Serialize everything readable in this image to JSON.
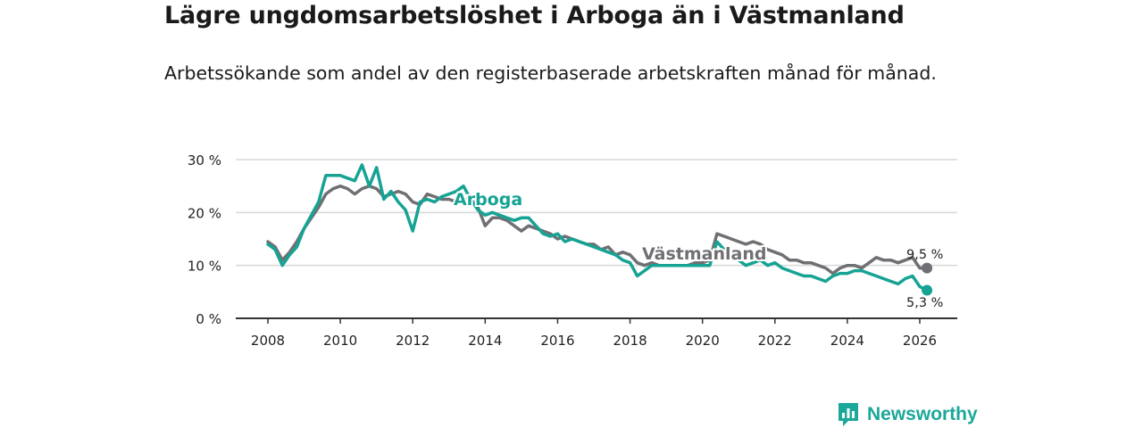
{
  "header": {
    "title": "Lägre ungdomsarbetslöshet i Arboga än i Västmanland",
    "subtitle": "Arbetssökande som andel av den registerbaserade arbetskraften månad för månad."
  },
  "logo": {
    "text": "Newsworthy"
  },
  "colors": {
    "arboga": "#16a394",
    "vastmanland": "#707074",
    "grid": "#d7d7d7",
    "axis": "#333333",
    "brand": "#1ba89a"
  },
  "chart_data": {
    "type": "line",
    "title": "Lägre ungdomsarbetslöshet i Arboga än i Västmanland",
    "xlabel": "",
    "ylabel": "",
    "xlim": [
      2007.1,
      2027.0
    ],
    "ylim": [
      0,
      30
    ],
    "x_ticks": [
      2008,
      2010,
      2012,
      2014,
      2016,
      2018,
      2020,
      2022,
      2024,
      2026
    ],
    "x_tick_labels": [
      "2008",
      "2010",
      "2012",
      "2014",
      "2016",
      "2018",
      "2020",
      "2022",
      "2024",
      "2026"
    ],
    "y_ticks": [
      0,
      10,
      20,
      30
    ],
    "y_tick_labels": [
      "0 %",
      "10 %",
      "20 %",
      "30 %"
    ],
    "grid": true,
    "series": [
      {
        "name": "Västmanland",
        "label": "Västmanland",
        "end_label": "9,5 %",
        "x": [
          2008.0,
          2008.2,
          2008.4,
          2008.6,
          2008.8,
          2009.0,
          2009.2,
          2009.4,
          2009.6,
          2009.8,
          2010.0,
          2010.2,
          2010.4,
          2010.6,
          2010.8,
          2011.0,
          2011.2,
          2011.4,
          2011.6,
          2011.8,
          2012.0,
          2012.2,
          2012.4,
          2012.6,
          2012.8,
          2013.0,
          2013.2,
          2013.4,
          2013.6,
          2013.8,
          2014.0,
          2014.2,
          2014.4,
          2014.6,
          2014.8,
          2015.0,
          2015.2,
          2015.4,
          2015.6,
          2015.8,
          2016.0,
          2016.2,
          2016.4,
          2016.6,
          2016.8,
          2017.0,
          2017.2,
          2017.4,
          2017.6,
          2017.8,
          2018.0,
          2018.2,
          2018.4,
          2018.6,
          2018.8,
          2019.0,
          2019.2,
          2019.4,
          2019.6,
          2019.8,
          2020.0,
          2020.2,
          2020.4,
          2020.6,
          2020.8,
          2021.0,
          2021.2,
          2021.4,
          2021.6,
          2021.8,
          2022.0,
          2022.2,
          2022.4,
          2022.6,
          2022.8,
          2023.0,
          2023.2,
          2023.4,
          2023.6,
          2023.8,
          2024.0,
          2024.2,
          2024.4,
          2024.6,
          2024.8,
          2025.0,
          2025.2,
          2025.4,
          2025.6,
          2025.8,
          2026.0,
          2026.2
        ],
        "values": [
          14.5,
          13.5,
          11.0,
          12.5,
          14.5,
          17.0,
          19.0,
          21.0,
          23.5,
          24.5,
          25.0,
          24.5,
          23.5,
          24.5,
          25.0,
          24.5,
          23.0,
          23.5,
          24.0,
          23.5,
          22.0,
          21.5,
          23.5,
          23.0,
          22.5,
          22.5,
          22.0,
          22.5,
          22.5,
          21.0,
          17.5,
          19.0,
          19.0,
          18.5,
          17.5,
          16.5,
          17.5,
          17.0,
          16.5,
          16.0,
          15.0,
          15.5,
          15.0,
          14.5,
          14.0,
          14.0,
          13.0,
          13.5,
          12.0,
          12.5,
          12.0,
          10.5,
          10.0,
          10.5,
          10.0,
          10.0,
          10.0,
          10.0,
          10.0,
          10.5,
          10.5,
          11.0,
          16.0,
          15.5,
          15.0,
          14.5,
          14.0,
          14.5,
          14.0,
          13.0,
          12.5,
          12.0,
          11.0,
          11.0,
          10.5,
          10.5,
          10.0,
          9.5,
          8.5,
          9.5,
          10.0,
          10.0,
          9.5,
          10.5,
          11.5,
          11.0,
          11.0,
          10.5,
          11.0,
          11.5,
          9.5,
          9.5
        ]
      },
      {
        "name": "Arboga",
        "label": "Arboga",
        "end_label": "5,3 %",
        "x": [
          2008.0,
          2008.2,
          2008.4,
          2008.6,
          2008.8,
          2009.0,
          2009.2,
          2009.4,
          2009.6,
          2009.8,
          2010.0,
          2010.2,
          2010.4,
          2010.6,
          2010.8,
          2011.0,
          2011.2,
          2011.4,
          2011.6,
          2011.8,
          2012.0,
          2012.2,
          2012.4,
          2012.6,
          2012.8,
          2013.0,
          2013.2,
          2013.4,
          2013.6,
          2013.8,
          2014.0,
          2014.2,
          2014.4,
          2014.6,
          2014.8,
          2015.0,
          2015.2,
          2015.4,
          2015.6,
          2015.8,
          2016.0,
          2016.2,
          2016.4,
          2016.6,
          2016.8,
          2017.0,
          2017.2,
          2017.4,
          2017.6,
          2017.8,
          2018.0,
          2018.2,
          2018.4,
          2018.6,
          2018.8,
          2019.0,
          2019.2,
          2019.4,
          2019.6,
          2019.8,
          2020.0,
          2020.2,
          2020.4,
          2020.6,
          2020.8,
          2021.0,
          2021.2,
          2021.4,
          2021.6,
          2021.8,
          2022.0,
          2022.2,
          2022.4,
          2022.6,
          2022.8,
          2023.0,
          2023.2,
          2023.4,
          2023.6,
          2023.8,
          2024.0,
          2024.2,
          2024.4,
          2024.6,
          2024.8,
          2025.0,
          2025.2,
          2025.4,
          2025.6,
          2025.8,
          2026.0,
          2026.2
        ],
        "values": [
          14.0,
          13.0,
          10.0,
          12.0,
          13.5,
          17.0,
          19.5,
          22.0,
          27.0,
          27.0,
          27.0,
          26.5,
          26.0,
          29.0,
          25.0,
          28.5,
          22.5,
          24.0,
          22.0,
          20.5,
          16.5,
          22.0,
          22.5,
          22.0,
          23.0,
          23.5,
          24.0,
          25.0,
          22.5,
          20.5,
          19.5,
          20.0,
          19.5,
          19.0,
          18.5,
          19.0,
          19.0,
          17.5,
          16.0,
          15.5,
          16.0,
          14.5,
          15.0,
          14.5,
          14.0,
          13.5,
          13.0,
          12.5,
          12.0,
          11.0,
          10.5,
          8.0,
          9.0,
          10.0,
          10.0,
          10.0,
          10.0,
          10.0,
          10.0,
          10.0,
          10.0,
          10.0,
          14.5,
          13.0,
          12.0,
          11.0,
          10.0,
          10.5,
          11.0,
          10.0,
          10.5,
          9.5,
          9.0,
          8.5,
          8.0,
          8.0,
          7.5,
          7.0,
          8.0,
          8.5,
          8.5,
          9.0,
          9.0,
          8.5,
          8.0,
          7.5,
          7.0,
          6.5,
          7.5,
          8.0,
          6.0,
          5.3
        ]
      }
    ]
  }
}
